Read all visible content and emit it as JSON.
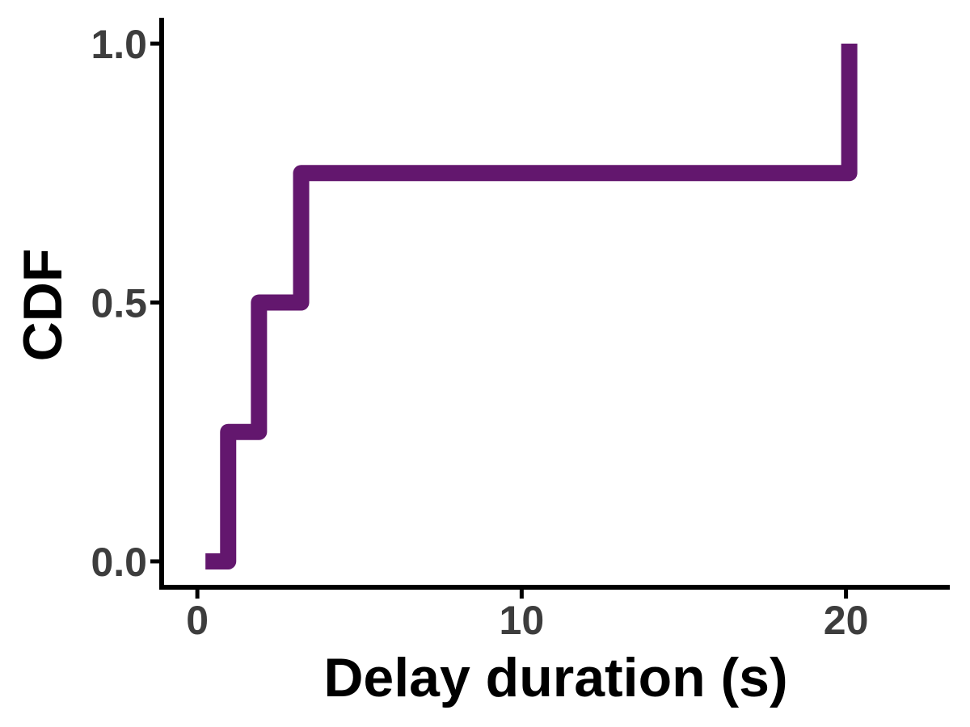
{
  "chart_data": {
    "type": "line",
    "step": true,
    "title": "",
    "xlabel": "Delay duration (s)",
    "ylabel": "CDF",
    "xlim": [
      -1.1,
      23.2
    ],
    "ylim": [
      -0.05,
      1.05
    ],
    "x_ticks": [
      0,
      10,
      20
    ],
    "y_ticks": [
      0.0,
      0.5,
      1.0
    ],
    "x_tick_labels": [
      "0",
      "10",
      "20"
    ],
    "y_tick_labels": [
      "0.0",
      "0.5",
      "1.0"
    ],
    "grid": false,
    "legend": "none",
    "series": [
      {
        "color": "#63176e",
        "x": [
          0.25,
          0.75,
          0.95,
          1.4,
          1.9,
          2.3,
          2.8,
          3.2,
          10.0,
          20.1
        ],
        "y": [
          0.0,
          0.0,
          0.25,
          0.25,
          0.5,
          0.5,
          0.5,
          0.75,
          0.75,
          1.0
        ]
      }
    ]
  }
}
